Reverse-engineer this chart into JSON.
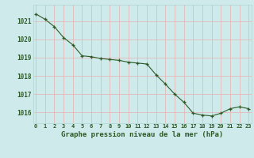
{
  "x": [
    0,
    1,
    2,
    3,
    4,
    5,
    6,
    7,
    8,
    9,
    10,
    11,
    12,
    13,
    14,
    15,
    16,
    17,
    18,
    19,
    20,
    21,
    22,
    23
  ],
  "y": [
    1021.4,
    1021.1,
    1020.7,
    1020.1,
    1019.7,
    1019.1,
    1019.05,
    1018.95,
    1018.9,
    1018.85,
    1018.75,
    1018.7,
    1018.65,
    1018.05,
    1017.55,
    1017.0,
    1016.55,
    1015.95,
    1015.85,
    1015.8,
    1015.95,
    1016.2,
    1016.3,
    1016.2
  ],
  "line_color": "#2d5a27",
  "marker_color": "#2d5a27",
  "bg_color": "#ceeaea",
  "grid_color": "#aed4d4",
  "axis_label_color": "#2d5a27",
  "xlabel": "Graphe pression niveau de la mer (hPa)",
  "ylim_min": 1015.4,
  "ylim_max": 1021.9,
  "yticks": [
    1016,
    1017,
    1018,
    1019,
    1020,
    1021
  ],
  "xticks": [
    0,
    1,
    2,
    3,
    4,
    5,
    6,
    7,
    8,
    9,
    10,
    11,
    12,
    13,
    14,
    15,
    16,
    17,
    18,
    19,
    20,
    21,
    22,
    23
  ]
}
